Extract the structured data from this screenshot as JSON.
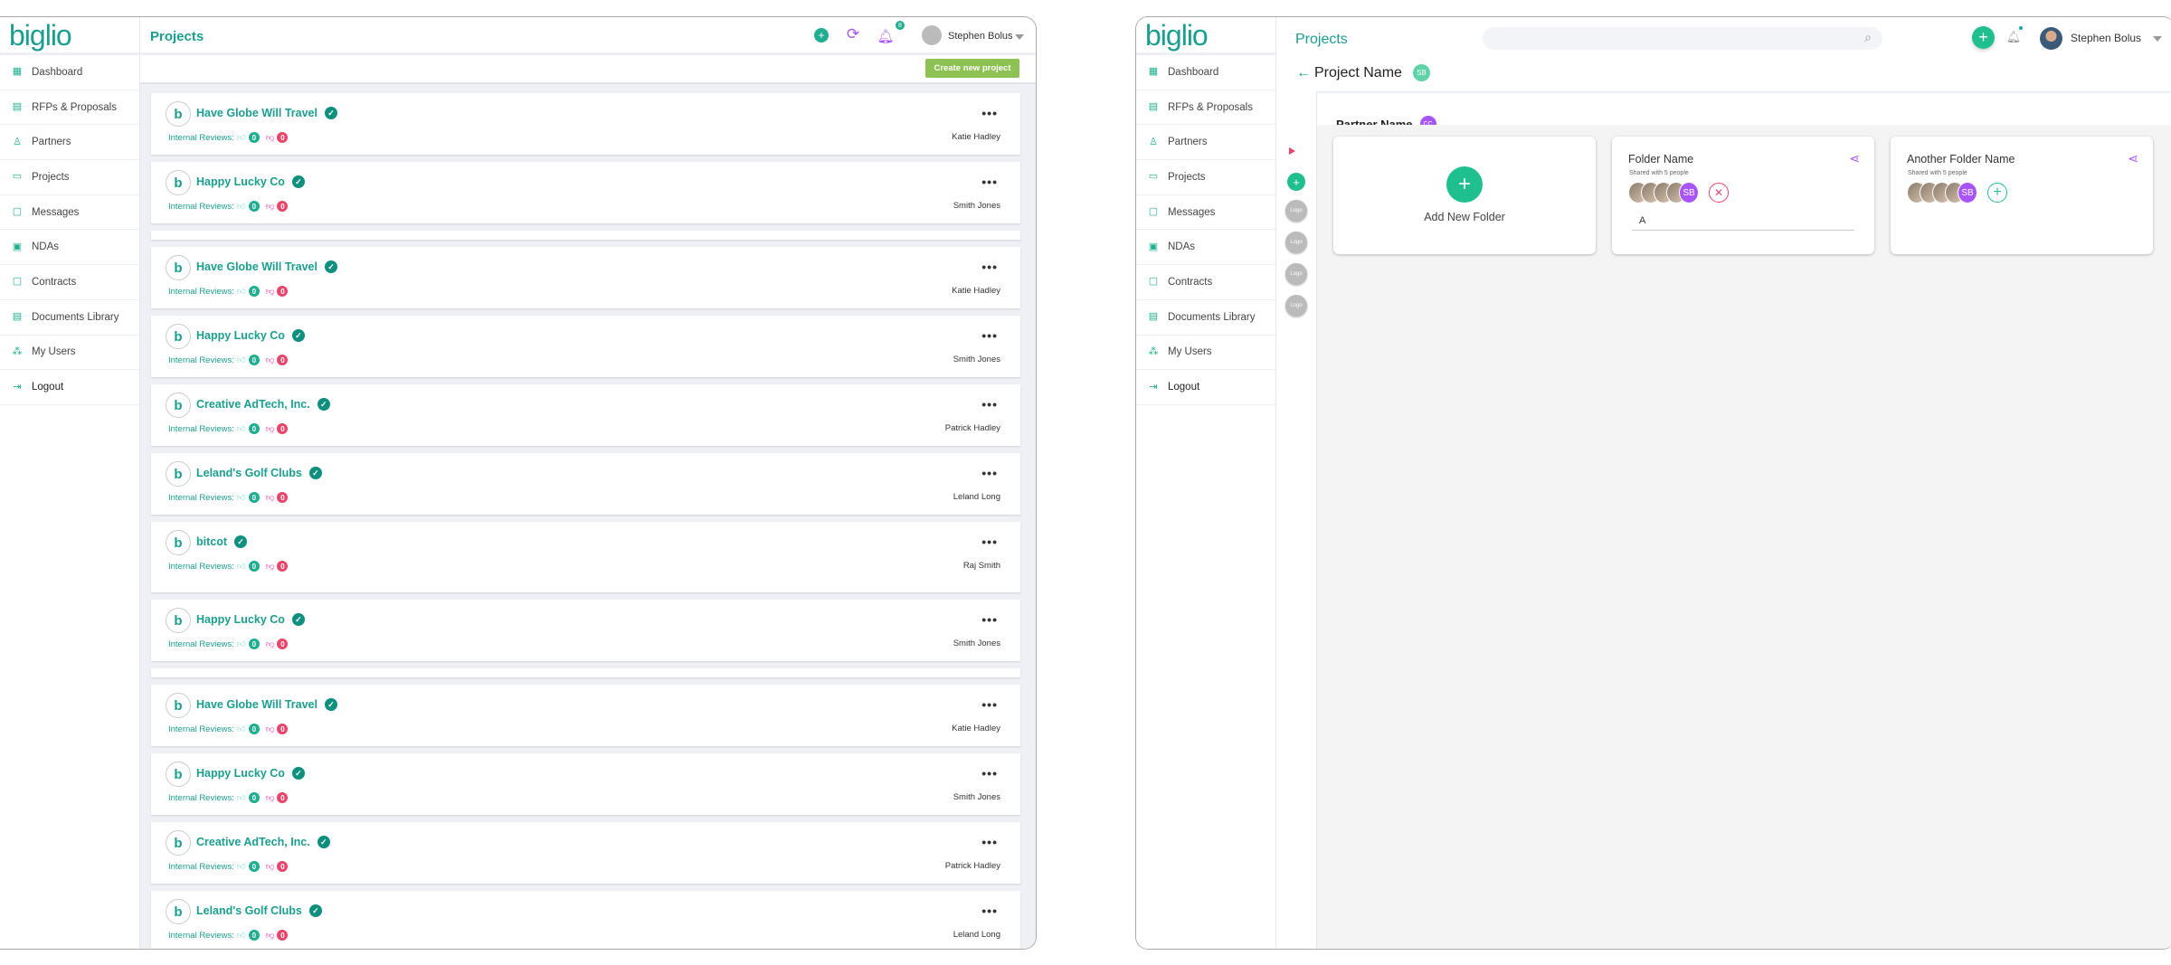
{
  "brand": "biglio",
  "colors": {
    "teal": "#1a9e8f",
    "green": "#1fbf8f",
    "purple": "#a855f7",
    "red": "#e8456b",
    "create_button": "#8dc152"
  },
  "sidebar": {
    "items": [
      {
        "label": "Dashboard",
        "icon": "grid-icon"
      },
      {
        "label": "RFPs & Proposals",
        "icon": "document-icon"
      },
      {
        "label": "Partners",
        "icon": "user-icon"
      },
      {
        "label": "Projects",
        "icon": "folder-icon"
      },
      {
        "label": "Messages",
        "icon": "chat-icon"
      },
      {
        "label": "NDAs",
        "icon": "nda-icon"
      },
      {
        "label": "Contracts",
        "icon": "contract-icon"
      },
      {
        "label": "Documents Library",
        "icon": "library-icon"
      },
      {
        "label": "My Users",
        "icon": "users-icon"
      },
      {
        "label": "Logout",
        "icon": "logout-icon"
      }
    ]
  },
  "left": {
    "header": {
      "title": "Projects",
      "notification_count": "8",
      "user_name": "Stephen Bolus"
    },
    "create_button": "Create new project",
    "reviews_label": "Internal Reviews:",
    "projects": [
      {
        "name": "Have Globe Will Travel",
        "owner": "Katie Hadley",
        "up": "0",
        "down": "0"
      },
      {
        "name": "Happy Lucky Co",
        "owner": "Smith Jones",
        "up": "0",
        "down": "0"
      },
      {
        "thin": true
      },
      {
        "name": "Have Globe Will Travel",
        "owner": "Katie Hadley",
        "up": "0",
        "down": "0"
      },
      {
        "name": "Happy Lucky Co",
        "owner": "Smith Jones",
        "up": "0",
        "down": "0"
      },
      {
        "name": "Creative AdTech, Inc.",
        "owner": "Patrick Hadley",
        "up": "0",
        "down": "0"
      },
      {
        "name": "Leland's Golf Clubs",
        "owner": "Leland Long",
        "up": "0",
        "down": "0"
      },
      {
        "name": "bitcot",
        "owner": "Raj Smith",
        "up": "0",
        "down": "0",
        "tall": true
      },
      {
        "name": "Happy Lucky Co",
        "owner": "Smith Jones",
        "up": "0",
        "down": "0"
      },
      {
        "thin": true
      },
      {
        "name": "Have Globe Will Travel",
        "owner": "Katie Hadley",
        "up": "0",
        "down": "0"
      },
      {
        "name": "Happy Lucky Co",
        "owner": "Smith Jones",
        "up": "0",
        "down": "0"
      },
      {
        "name": "Creative AdTech, Inc.",
        "owner": "Patrick Hadley",
        "up": "0",
        "down": "0"
      },
      {
        "name": "Leland's Golf Clubs",
        "owner": "Leland Long",
        "up": "0",
        "down": "0"
      }
    ]
  },
  "right": {
    "header": {
      "title": "Projects",
      "search_placeholder": "",
      "user_name": "Stephen Bolus"
    },
    "project_name": "Project Name",
    "project_avatar": "SB",
    "partner_name": "Partner Name",
    "partner_avatar": "CC",
    "strip_logos": [
      "Logo",
      "Logo",
      "Logo",
      "Logo"
    ],
    "add_folder_label": "Add New Folder",
    "folders": [
      {
        "name": "Folder Name",
        "shared": "Shared with 5 people",
        "avatar_initials": "SB",
        "input_value": "A",
        "action": "remove"
      },
      {
        "name": "Another Folder Name",
        "shared": "Shared with 5 people",
        "avatar_initials": "SB",
        "action": "add"
      }
    ]
  }
}
